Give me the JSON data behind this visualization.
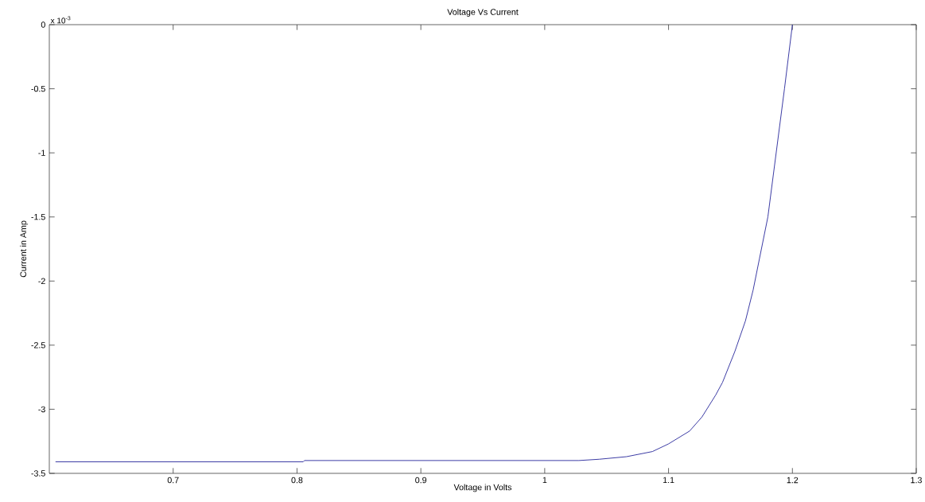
{
  "chart_data": {
    "type": "line",
    "title": "Voltage Vs Current",
    "xlabel": "Voltage in Volts",
    "ylabel": "Current in Amp",
    "annotations": [
      "x 10$^{-3}$"
    ],
    "x": [
      0.605,
      0.805,
      0.806,
      1.0276,
      1.044,
      1.066,
      1.087,
      1.1,
      1.117,
      1.127,
      1.138,
      1.1436,
      1.1535,
      1.1621,
      1.1683,
      1.1733,
      1.1802,
      1.1869,
      1.1936,
      1.2
    ],
    "series": [
      {
        "color": "#2e2e9e",
        "values": [
          -3.41,
          -3.41,
          -3.4,
          -3.4,
          -3.39,
          -3.37,
          -3.33,
          -3.27,
          -3.17,
          -3.06,
          -2.89,
          -2.79,
          -2.55,
          -2.31,
          -2.07,
          -1.83,
          -1.5,
          -1.0,
          -0.5,
          0
        ]
      }
    ],
    "xlim": [
      0.6,
      1.3
    ],
    "ylim": [
      -3.5,
      0
    ],
    "xticks": [
      0.7,
      0.8,
      0.9,
      1,
      1.1,
      1.2,
      1.3
    ],
    "yticks": [
      -3.5,
      -3,
      -2.5,
      -2,
      -1.5,
      -1,
      -0.5,
      0
    ],
    "grid": false,
    "line_style": "solid"
  }
}
